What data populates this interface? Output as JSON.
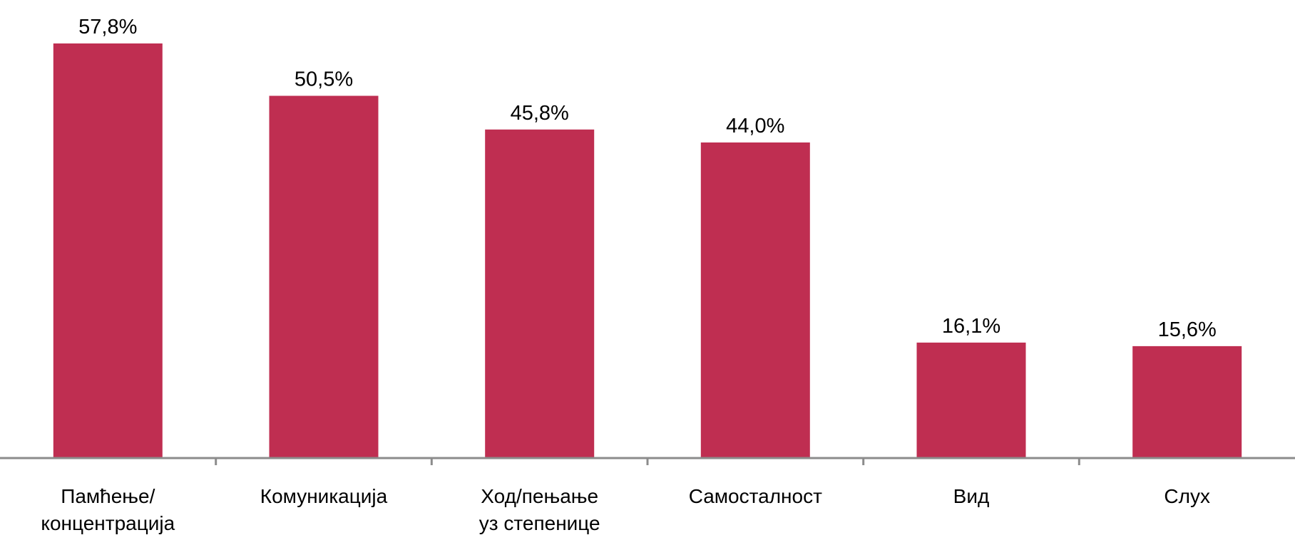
{
  "chart_data": {
    "type": "bar",
    "categories": [
      [
        "Памћење/",
        "концентрација"
      ],
      [
        "Комуникација"
      ],
      [
        "Ход/пењање",
        "уз степенице"
      ],
      [
        "Самосталност"
      ],
      [
        "Вид"
      ],
      [
        "Слух"
      ]
    ],
    "values": [
      57.8,
      50.5,
      45.8,
      44.0,
      16.1,
      15.6
    ],
    "value_labels": [
      "57,8%",
      "50,5%",
      "45,8%",
      "44,0%",
      "16,1%",
      "15,6%"
    ],
    "ylim": [
      0,
      57.8
    ],
    "grid": false,
    "legend": "none",
    "colors": {
      "bar": "#BF2E51",
      "axis": "#8C8C8C",
      "text": "#000000"
    }
  }
}
